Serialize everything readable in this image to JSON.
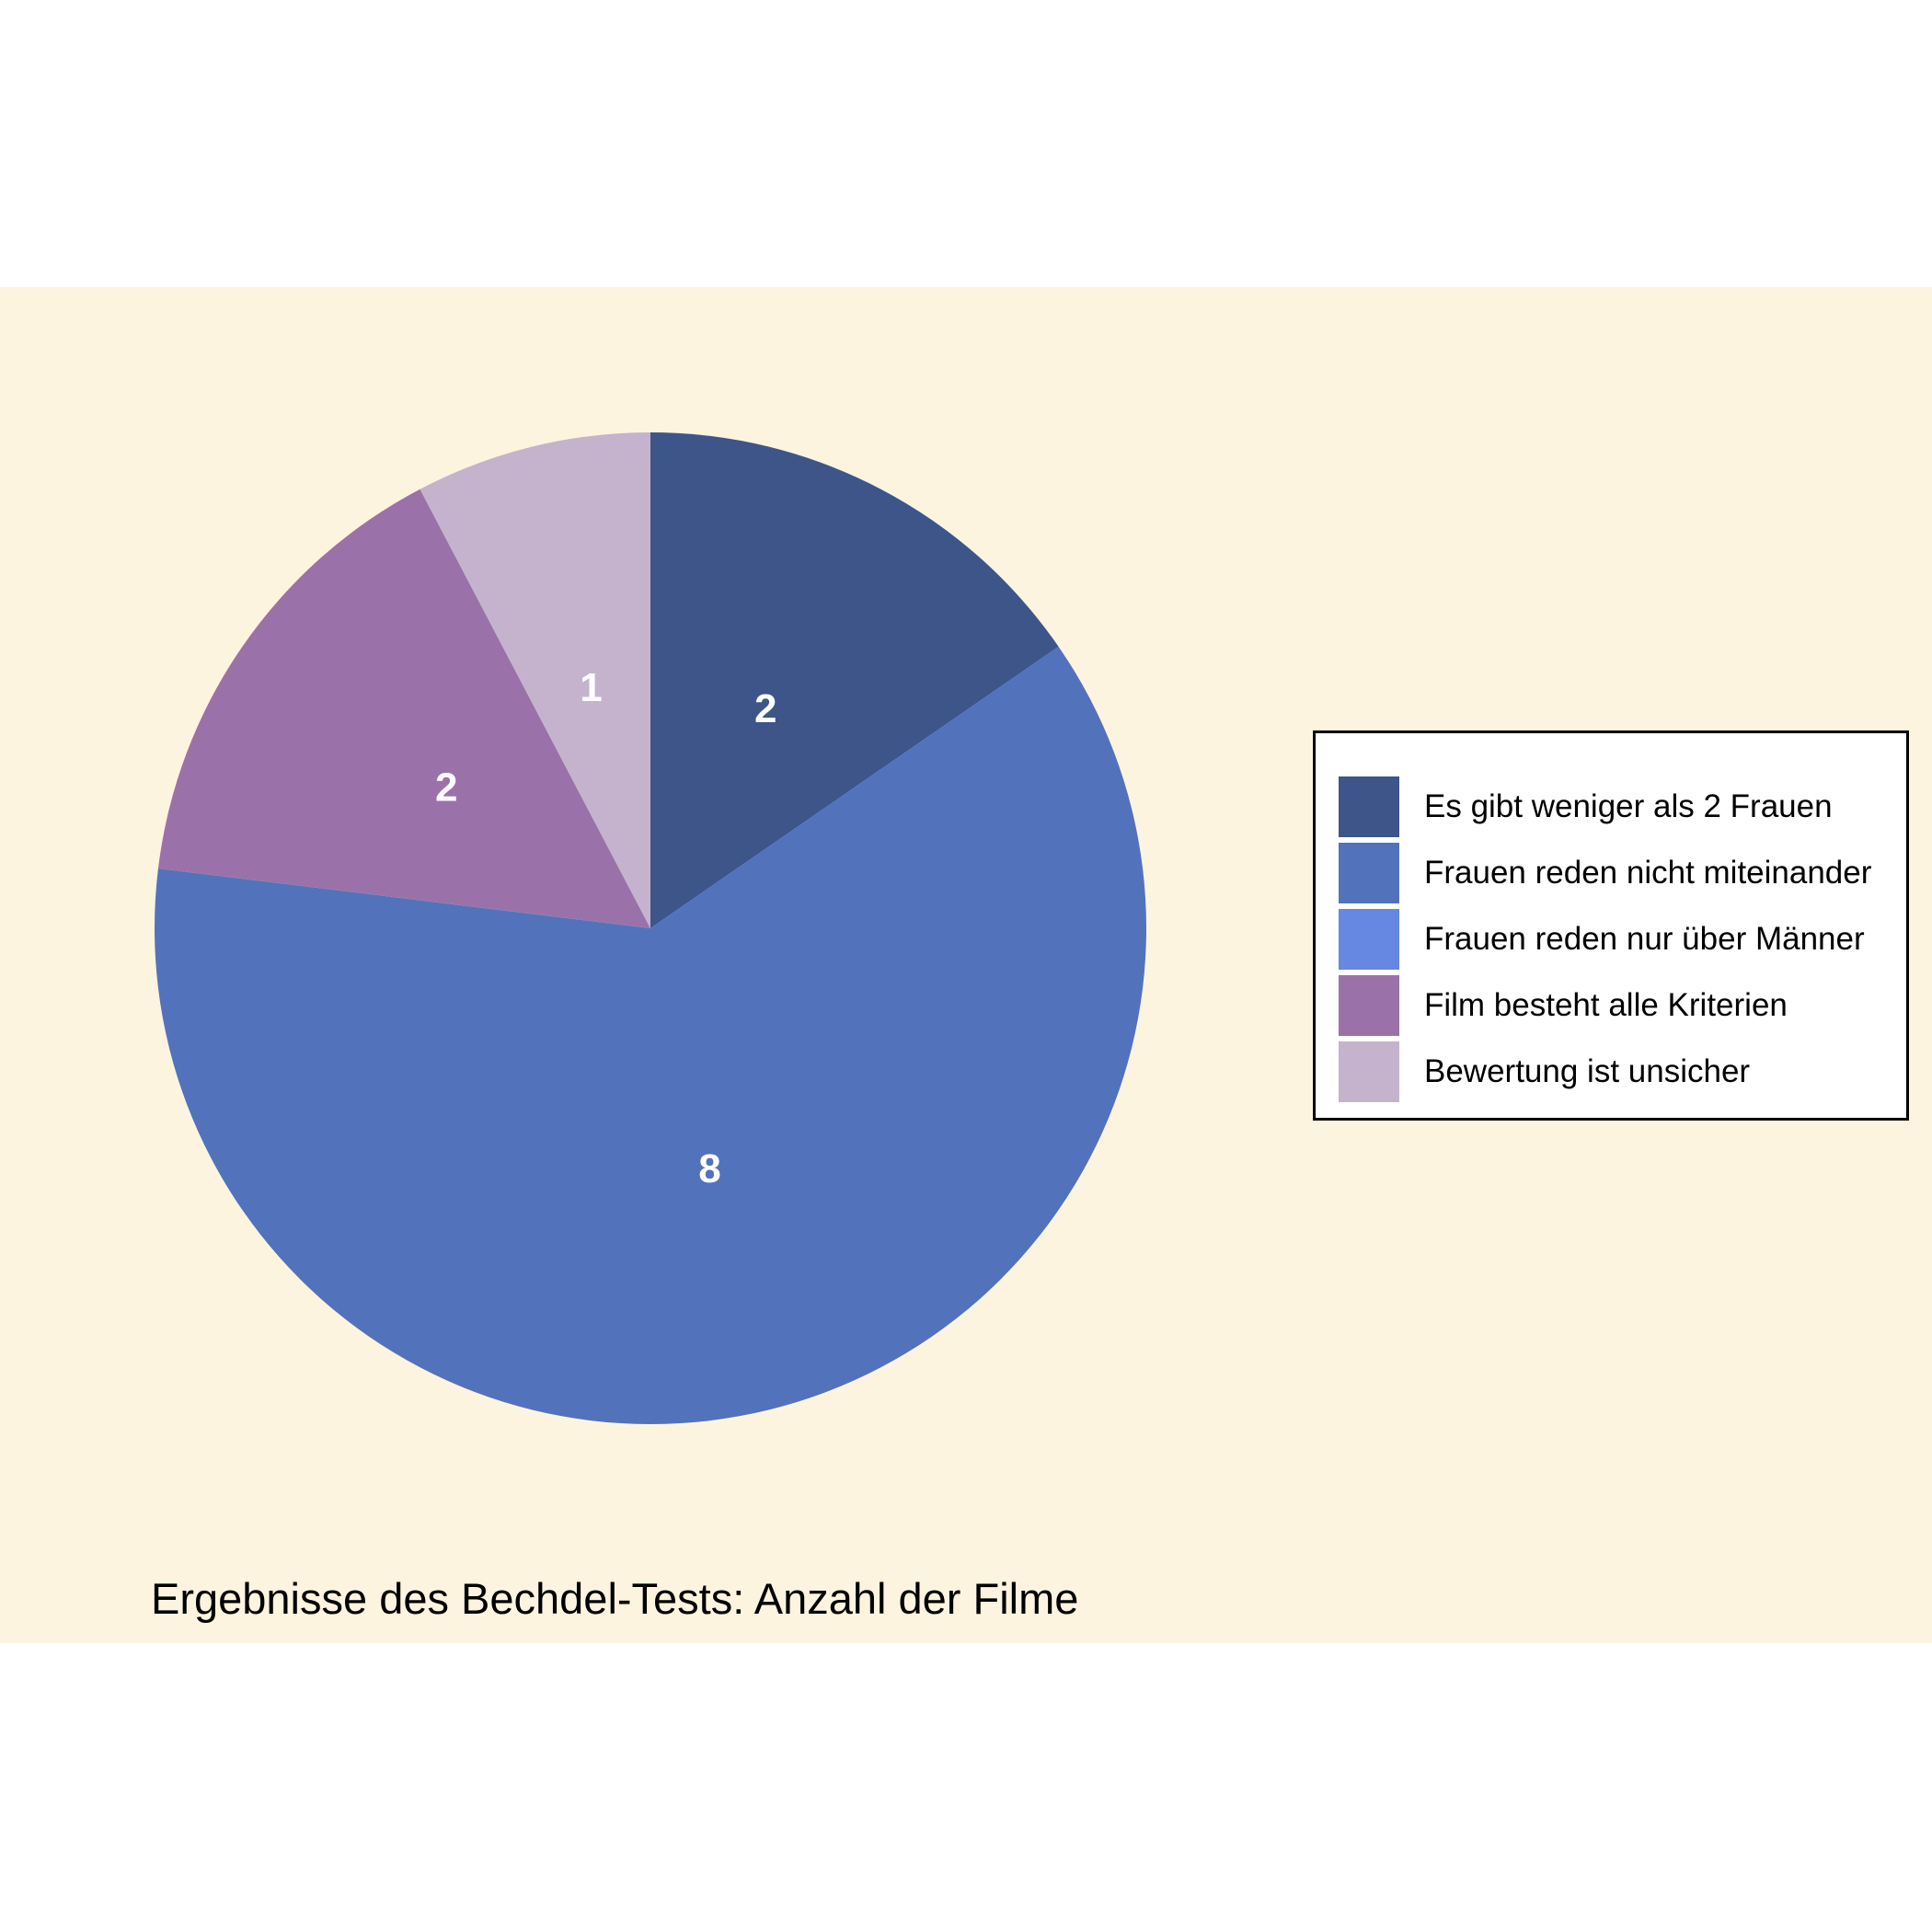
{
  "chart_data": {
    "type": "pie",
    "title": "Ergebnisse des Bechdel-Tests: Anzahl der Filme",
    "legend_position": "right",
    "start": "top",
    "direction": "clockwise",
    "slices": [
      {
        "label": "Es gibt weniger als 2 Frauen",
        "value": 2,
        "color": "#3d5588"
      },
      {
        "label": "Frauen reden nicht miteinander",
        "value": 8,
        "color": "#5372bc"
      },
      {
        "label": "Frauen reden nur über Männer",
        "value": 0,
        "color": "#6688e2"
      },
      {
        "label": "Film besteht alle Kriterien",
        "value": 2,
        "color": "#9a72a9"
      },
      {
        "label": "Bewertung ist unsicher",
        "value": 1,
        "color": "#c5b3cd"
      }
    ]
  }
}
